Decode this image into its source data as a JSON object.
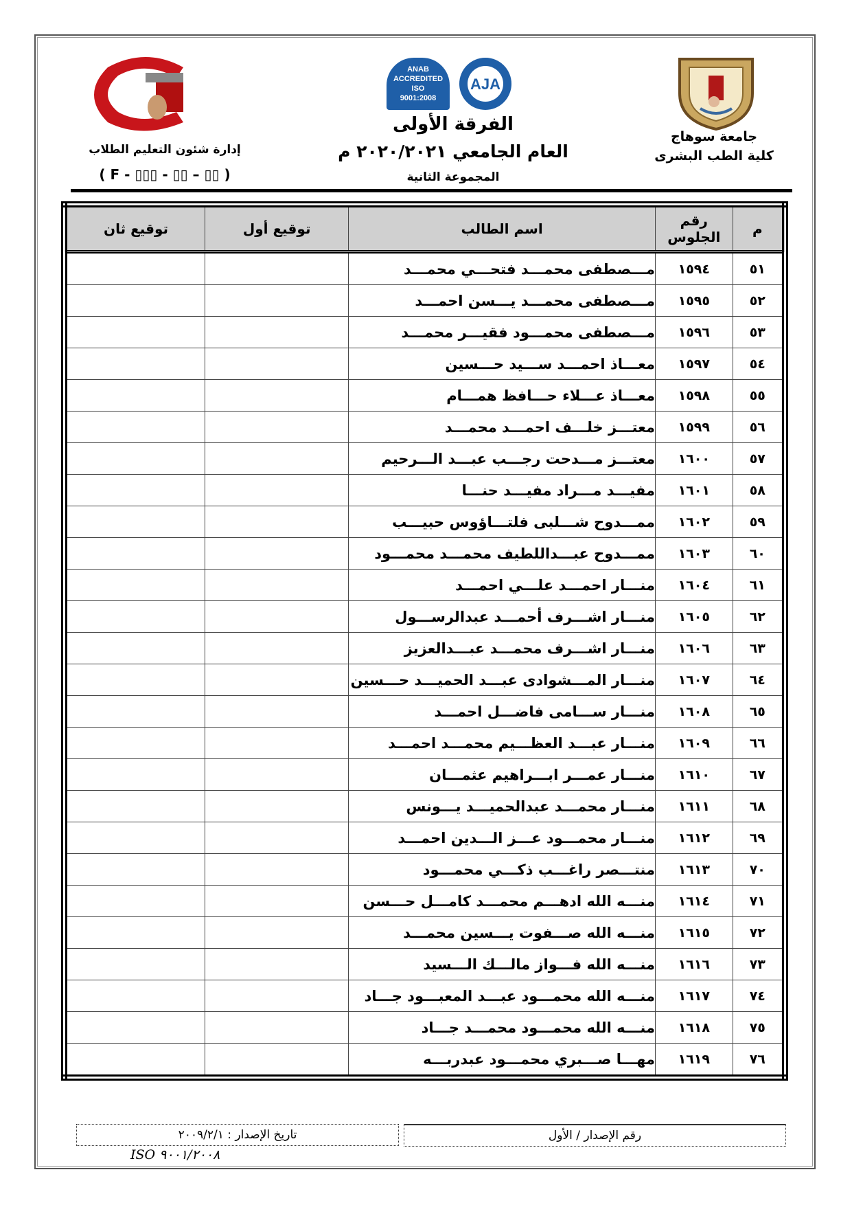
{
  "header": {
    "right": {
      "university": "جامعة سوهاج",
      "faculty": "كلية الطب البشرى"
    },
    "center": {
      "level": "الفرقة الأولى",
      "year": "العام الجامعي ٢٠٢٠/٢٠٢١ م",
      "group": "المجموعة الثانية",
      "accreditation_logos": [
        "ANAB ACCREDITED ISO 9001:2008",
        "AJA"
      ]
    },
    "left": {
      "department": "إدارة شئون التعليم الطلاب",
      "form_code": "( F - ▯▯▯ - ▯▯ – ▯▯ )",
      "logo_text": "جامعة سوهاج كلية الطب"
    }
  },
  "table": {
    "headers": {
      "index": "م",
      "seat": "رقم الجلوس",
      "name": "اسم الطالب",
      "sign1": "توقيع أول",
      "sign2": "توقيع ثان"
    },
    "rows": [
      {
        "i": "٥١",
        "seat": "١٥٩٤",
        "name": "مـــصطفى محمـــد فتحـــي محمـــد"
      },
      {
        "i": "٥٢",
        "seat": "١٥٩٥",
        "name": "مـــصطفى محمـــد يـــسن احمـــد"
      },
      {
        "i": "٥٣",
        "seat": "١٥٩٦",
        "name": "مـــصطفى محمـــود فقيـــر محمـــد"
      },
      {
        "i": "٥٤",
        "seat": "١٥٩٧",
        "name": "معـــاذ احمـــد ســـيد حـــسين"
      },
      {
        "i": "٥٥",
        "seat": "١٥٩٨",
        "name": "معـــاذ عـــلاء حـــافظ همـــام"
      },
      {
        "i": "٥٦",
        "seat": "١٥٩٩",
        "name": "معتـــز خلـــف احمـــد محمـــد"
      },
      {
        "i": "٥٧",
        "seat": "١٦٠٠",
        "name": "معتـــز مـــدحت رجـــب عبـــد الـــرحيم"
      },
      {
        "i": "٥٨",
        "seat": "١٦٠١",
        "name": "مفيـــد مـــراد مفيـــد حنـــا"
      },
      {
        "i": "٥٩",
        "seat": "١٦٠٢",
        "name": "ممـــدوح شـــلبى فلتـــاؤوس حبيـــب"
      },
      {
        "i": "٦٠",
        "seat": "١٦٠٣",
        "name": "ممـــدوح عبـــداللطيف محمـــد محمـــود"
      },
      {
        "i": "٦١",
        "seat": "١٦٠٤",
        "name": "منـــار احمـــد علـــي احمـــد"
      },
      {
        "i": "٦٢",
        "seat": "١٦٠٥",
        "name": "منـــار اشـــرف أحمـــد عبدالرســـول"
      },
      {
        "i": "٦٣",
        "seat": "١٦٠٦",
        "name": "منـــار اشـــرف محمـــد عبـــدالعزيز"
      },
      {
        "i": "٦٤",
        "seat": "١٦٠٧",
        "name": "منـــار المـــشوادى عبـــد الحميـــد حـــسين"
      },
      {
        "i": "٦٥",
        "seat": "١٦٠٨",
        "name": "منـــار ســـامى فاضـــل احمـــد"
      },
      {
        "i": "٦٦",
        "seat": "١٦٠٩",
        "name": "منـــار عبـــد العظـــيم محمـــد احمـــد"
      },
      {
        "i": "٦٧",
        "seat": "١٦١٠",
        "name": "منـــار عمـــر ابـــراهيم عثمـــان"
      },
      {
        "i": "٦٨",
        "seat": "١٦١١",
        "name": "منـــار محمـــد عبدالحميـــد يـــونس"
      },
      {
        "i": "٦٩",
        "seat": "١٦١٢",
        "name": "منـــار محمـــود عـــز الـــدين احمـــد"
      },
      {
        "i": "٧٠",
        "seat": "١٦١٣",
        "name": "منتـــصر راغـــب ذكـــي محمـــود"
      },
      {
        "i": "٧١",
        "seat": "١٦١٤",
        "name": "منـــه الله ادهـــم محمـــد كامـــل حـــسن"
      },
      {
        "i": "٧٢",
        "seat": "١٦١٥",
        "name": "منـــه الله صـــفوت يـــسين محمـــد"
      },
      {
        "i": "٧٣",
        "seat": "١٦١٦",
        "name": "منـــه الله فـــواز مالـــك الـــسيد"
      },
      {
        "i": "٧٤",
        "seat": "١٦١٧",
        "name": "منـــه الله محمـــود عبـــد المعبـــود جـــاد"
      },
      {
        "i": "٧٥",
        "seat": "١٦١٨",
        "name": "منـــه الله محمـــود محمـــد جـــاد"
      },
      {
        "i": "٧٦",
        "seat": "١٦١٩",
        "name": "مهـــا صـــبري محمـــود عبدربـــه"
      }
    ]
  },
  "footer": {
    "issue_number": "رقم الإصدار / الأول",
    "issue_date": "تاريخ الإصدار : ٢٠٠٩/٢/١",
    "iso": "ISO ٩٠٠١/٢٠٠٨"
  },
  "colors": {
    "header_bg": "#d0d0d0",
    "logo_red": "#c8151b"
  }
}
